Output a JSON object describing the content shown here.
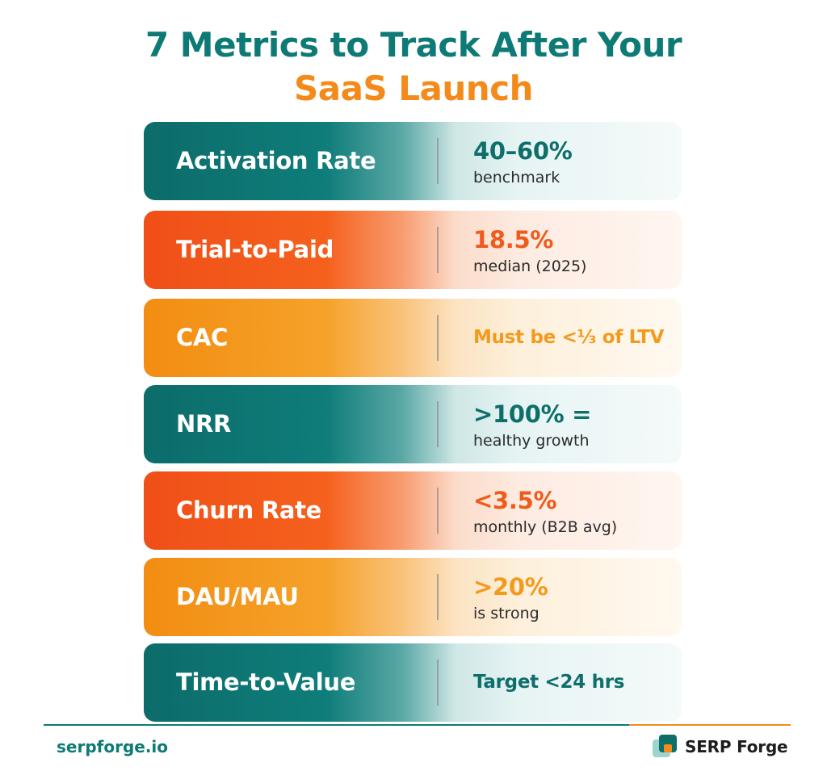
{
  "title": {
    "line1": "7 Metrics to Track After Your",
    "line2": "SaaS Launch"
  },
  "metrics": [
    {
      "label": "Activation Rate",
      "value": "40–60%",
      "sub": "benchmark",
      "theme": "teal"
    },
    {
      "label": "Trial-to-Paid",
      "value": "18.5%",
      "sub": "median (2025)",
      "theme": "red"
    },
    {
      "label": "CAC",
      "value": "Must be <⅓ of LTV",
      "sub": "",
      "theme": "orange"
    },
    {
      "label": "NRR",
      "value": ">100% =",
      "sub": "healthy growth",
      "theme": "teal"
    },
    {
      "label": "Churn Rate",
      "value": "<3.5%",
      "sub": "monthly (B2B avg)",
      "theme": "red"
    },
    {
      "label": "DAU/MAU",
      "value": ">20%",
      "sub": "is strong",
      "theme": "orange"
    },
    {
      "label": "Time-to-Value",
      "value": "Target <24 hrs",
      "sub": "",
      "theme": "teal"
    }
  ],
  "colors": {
    "teal": "#0e7a75",
    "red": "#f05a1a",
    "orange": "#f48a1a"
  },
  "footer": {
    "site": "serpforge.io",
    "brand": "SERP Forge",
    "brand_icon": "serp-forge-logo-icon"
  }
}
